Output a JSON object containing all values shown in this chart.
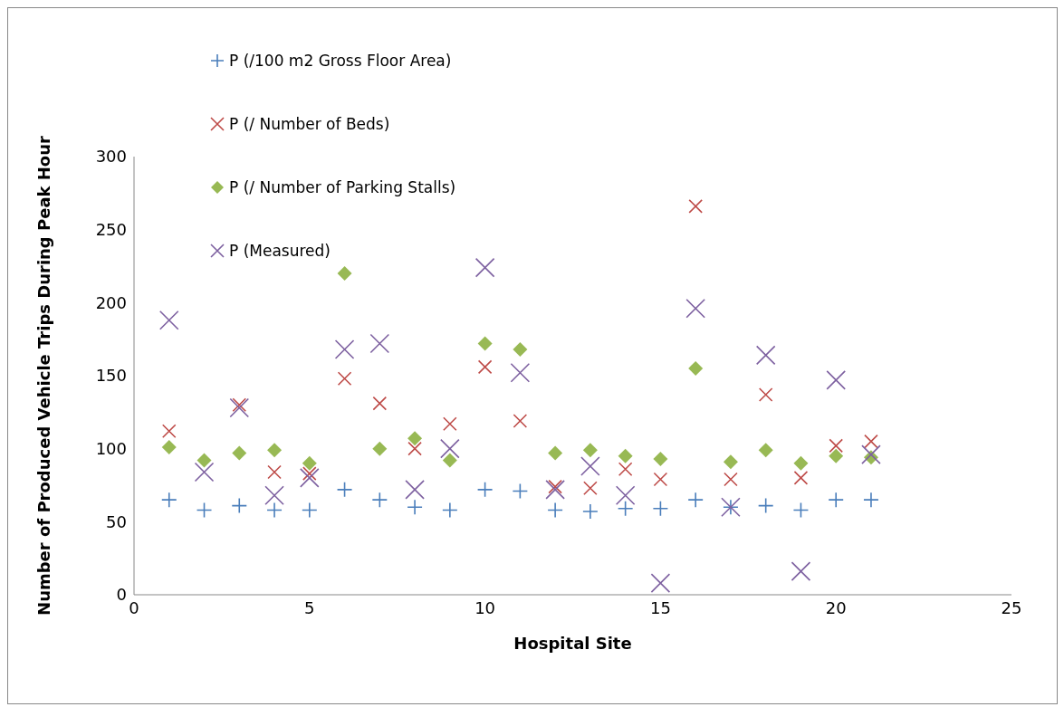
{
  "chart_data": {
    "type": "scatter",
    "xlabel": "Hospital Site",
    "ylabel": "Number of Produced Vehicle Trips During Peak Hour",
    "x": [
      1,
      2,
      3,
      4,
      5,
      6,
      7,
      8,
      9,
      10,
      11,
      12,
      13,
      14,
      15,
      16,
      17,
      18,
      19,
      20,
      21
    ],
    "xlim": [
      0,
      25
    ],
    "xticks": [
      0,
      5,
      10,
      15,
      20,
      25
    ],
    "ylim": [
      0,
      300
    ],
    "yticks": [
      0,
      50,
      100,
      150,
      200,
      250,
      300
    ],
    "grid": false,
    "legend": "top left",
    "series": [
      {
        "name": "P (/100 m2 Gross Floor Area)",
        "color": "#4a7ebb",
        "marker": "plus",
        "values": [
          65,
          58,
          61,
          58,
          58,
          72,
          65,
          60,
          58,
          72,
          71,
          58,
          57,
          59,
          59,
          65,
          60,
          61,
          58,
          65,
          65
        ]
      },
      {
        "name": "P (/ Number of Beds)",
        "color": "#be4b48",
        "marker": "cross",
        "values": [
          112,
          null,
          130,
          84,
          83,
          148,
          131,
          100,
          117,
          156,
          119,
          74,
          73,
          86,
          79,
          266,
          79,
          137,
          80,
          102,
          105
        ]
      },
      {
        "name": "P (/ Number of Parking Stalls)",
        "color": "#98b954",
        "marker": "diamond",
        "values": [
          101,
          92,
          97,
          99,
          90,
          220,
          100,
          107,
          92,
          172,
          168,
          97,
          99,
          95,
          93,
          155,
          91,
          99,
          90,
          95,
          94
        ]
      },
      {
        "name": "P (Measured)",
        "color": "#7d60a0",
        "marker": "cross",
        "values": [
          188,
          84,
          128,
          68,
          80,
          168,
          172,
          72,
          100,
          224,
          152,
          72,
          88,
          68,
          8,
          196,
          60,
          164,
          16,
          147,
          96
        ]
      }
    ]
  }
}
